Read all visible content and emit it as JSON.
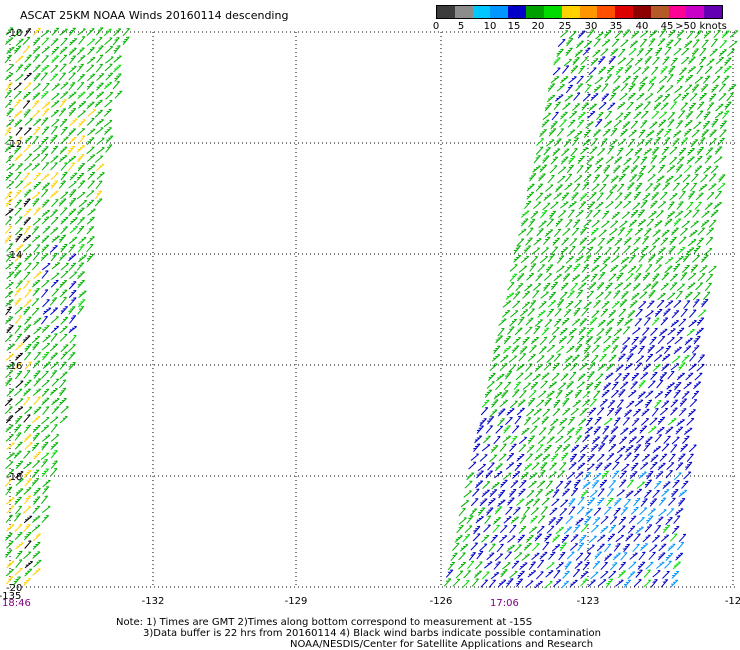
{
  "title": "ASCAT 25KM NOAA Winds 20160114 descending",
  "legend": {
    "labels": [
      "0",
      "5",
      "10",
      "15",
      "20",
      "25",
      "30",
      "35",
      "40",
      "45",
      ">50 knots"
    ],
    "colors": [
      "#3c3c3c",
      "#8c8c8c",
      "#00c8ff",
      "#0096ff",
      "#0000c8",
      "#00a000",
      "#00dc00",
      "#ffd200",
      "#ff9600",
      "#ff5000",
      "#dc0000",
      "#8c0000",
      "#b45a28",
      "#ff0096",
      "#c800c8",
      "#6400b4"
    ]
  },
  "axes": {
    "lon_labels": [
      "-135",
      "-132",
      "-129",
      "-126",
      "-123",
      "-12"
    ],
    "lat_labels": [
      "-10",
      "-12",
      "-14",
      "-16",
      "-18",
      "-20"
    ]
  },
  "times": {
    "left": "18:46",
    "right": "17:06"
  },
  "notes": {
    "line1": "Note: 1) Times are GMT 2)Times along bottom correspond to measurement at -15S",
    "line2": "3)Data buffer is 22 hrs from 20160114 4) Black wind barbs indicate possible contamination",
    "line3": "NOAA/NESDIS/Center for Satellite Applications and Research"
  },
  "barb_colors": {
    "green": "#00b400",
    "lightgreen": "#00dc00",
    "blue": "#0000c8",
    "cyan": "#0096ff",
    "yellow": "#ffd200",
    "orange": "#ff9600",
    "black": "#000000"
  }
}
